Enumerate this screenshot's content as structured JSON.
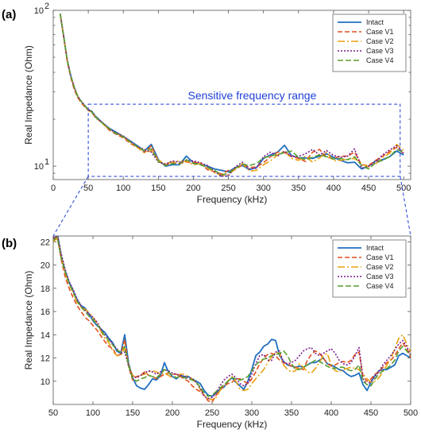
{
  "chart_data": [
    {
      "type": "line",
      "panel_label": "(a)",
      "xlabel": "Frequency (kHz)",
      "ylabel": "Real Impedance (Ohm)",
      "yscale": "log",
      "xlim": [
        0,
        510
      ],
      "ylim": [
        8.2,
        100
      ],
      "x_ticks": [
        "0",
        "50",
        "100",
        "150",
        "200",
        "250",
        "300",
        "350",
        "400",
        "450",
        "500"
      ],
      "y_ticks": [
        "10^2",
        "10^1"
      ],
      "grid": false,
      "legend_position": "top-right",
      "annotation": "Sensitive frequency range",
      "highlight_box_x": [
        50,
        495
      ],
      "highlight_box_y": [
        8.6,
        25
      ],
      "x": [
        10,
        15,
        20,
        25,
        30,
        35,
        40,
        45,
        50,
        55,
        60,
        70,
        80,
        90,
        100,
        110,
        120,
        130,
        140,
        150,
        160,
        170,
        180,
        190,
        200,
        210,
        220,
        230,
        240,
        250,
        260,
        270,
        280,
        290,
        300,
        310,
        320,
        330,
        340,
        350,
        360,
        370,
        380,
        390,
        400,
        410,
        420,
        430,
        440,
        450,
        460,
        470,
        480,
        490,
        500
      ],
      "series": [
        {
          "name": "Intact",
          "color": "#1f6fc0",
          "dash": "",
          "values": [
            95,
            68,
            48,
            38,
            32,
            28,
            26,
            24.5,
            23,
            22.5,
            21,
            19,
            17.5,
            16.5,
            15.5,
            14.5,
            13.5,
            12.5,
            13.8,
            11,
            10,
            10.2,
            10.2,
            11.6,
            10.5,
            10.3,
            10,
            9.6,
            9.4,
            9.2,
            9.8,
            10.1,
            9.5,
            9.8,
            11.2,
            11.8,
            12.3,
            13.6,
            11.7,
            11.3,
            11.3,
            11.2,
            11.6,
            12,
            11.4,
            10.9,
            10.5,
            10.6,
            9.6,
            10,
            10.8,
            11,
            11.5,
            12.5,
            11.8
          ]
        },
        {
          "name": "Case V1",
          "color": "#e0501e",
          "dash": "6,3",
          "values": [
            95,
            67,
            47,
            37,
            31,
            27.5,
            25.5,
            24,
            22.8,
            22.2,
            20.5,
            19,
            17,
            16,
            15.2,
            14,
            13.2,
            12.2,
            13.5,
            10.8,
            10.2,
            10.5,
            10.4,
            10.6,
            10.6,
            10.5,
            9.5,
            9.2,
            8.9,
            9.4,
            9.5,
            10.2,
            9.8,
            9.9,
            10.5,
            11.5,
            12.3,
            12.2,
            11.6,
            11.2,
            10.7,
            12.3,
            12.8,
            11.4,
            11.2,
            11.6,
            11.6,
            12.3,
            10.2,
            10.1,
            10.9,
            11.6,
            12.4,
            13.2,
            12
          ]
        },
        {
          "name": "Case V2",
          "color": "#e8a010",
          "dash": "9,3,2,3",
          "values": [
            95,
            68,
            48,
            38,
            32,
            28,
            26,
            24.3,
            22.9,
            22.1,
            20.8,
            18.8,
            17.2,
            16.2,
            15.5,
            14.2,
            13.2,
            12.2,
            12.6,
            10.9,
            10.4,
            10.6,
            10.8,
            10.7,
            10.2,
            10.4,
            9.8,
            9.1,
            8.7,
            8.8,
            9.6,
            10.4,
            9.3,
            9.4,
            10.2,
            10.8,
            11.8,
            12.5,
            11.2,
            10.9,
            11.6,
            10.6,
            11.3,
            12.3,
            10.8,
            10.9,
            11.1,
            11.2,
            10.4,
            9.9,
            10.3,
            11.4,
            12.1,
            13.8,
            12.6
          ]
        },
        {
          "name": "Case V3",
          "color": "#7a1a8a",
          "dash": "2,2",
          "values": [
            95,
            68,
            48,
            38,
            32,
            28,
            26,
            24.4,
            23.1,
            22.5,
            20.6,
            19.1,
            17.3,
            16.3,
            15.6,
            14.4,
            13.4,
            12.8,
            12.3,
            10.6,
            10.3,
            10.8,
            10.6,
            10.9,
            10.8,
            10.5,
            10.1,
            9.3,
            8.6,
            8.7,
            9.9,
            10.6,
            9.6,
            9.7,
            11.5,
            12.3,
            11.6,
            12.5,
            11.5,
            11.6,
            12,
            12.8,
            11.8,
            12.6,
            11.7,
            11.4,
            11.6,
            12.9,
            9.7,
            10,
            10.6,
            11.8,
            12.7,
            13.5,
            12.1
          ]
        },
        {
          "name": "Case V4",
          "color": "#5a9e30",
          "dash": "7,3",
          "values": [
            95,
            68,
            48,
            38,
            32,
            28,
            26,
            24.4,
            23,
            22.3,
            20.7,
            18.9,
            17.4,
            16.1,
            15.4,
            14.3,
            13.3,
            12.6,
            12.9,
            10.7,
            10.1,
            10.4,
            10.3,
            11,
            10.4,
            10.2,
            9.8,
            9.4,
            8.8,
            9,
            9.7,
            10.3,
            10.1,
            10.4,
            11.3,
            11.6,
            11.9,
            12.2,
            12.5,
            11.4,
            11,
            11.4,
            11.8,
            11.5,
            11.1,
            11.2,
            11,
            11.5,
            10.1,
            9.6,
            10.5,
            10.9,
            11.5,
            12.8,
            12.3
          ]
        }
      ]
    },
    {
      "type": "line",
      "panel_label": "(b)",
      "xlabel": "Frequency (kHz)",
      "ylabel": "Real Impedance (Ohm)",
      "yscale": "linear",
      "xlim": [
        50,
        500
      ],
      "ylim": [
        8,
        22.5
      ],
      "x_ticks": [
        "50",
        "100",
        "150",
        "200",
        "250",
        "300",
        "350",
        "400",
        "450",
        "500"
      ],
      "y_ticks": [
        "10",
        "12",
        "14",
        "16",
        "18",
        "20",
        "22"
      ],
      "grid": false,
      "legend_position": "top-right",
      "x": [
        50,
        55,
        60,
        65,
        70,
        75,
        80,
        85,
        90,
        95,
        100,
        105,
        110,
        115,
        120,
        125,
        130,
        135,
        140,
        145,
        150,
        155,
        160,
        165,
        170,
        175,
        180,
        185,
        190,
        195,
        200,
        205,
        210,
        215,
        220,
        225,
        230,
        235,
        240,
        245,
        250,
        255,
        260,
        265,
        270,
        275,
        280,
        285,
        290,
        295,
        300,
        305,
        310,
        315,
        320,
        325,
        330,
        335,
        340,
        345,
        350,
        355,
        360,
        365,
        370,
        375,
        380,
        385,
        390,
        395,
        400,
        405,
        410,
        415,
        420,
        425,
        430,
        435,
        440,
        445,
        450,
        455,
        460,
        465,
        470,
        475,
        480,
        485,
        490,
        495,
        500
      ],
      "series": [
        {
          "name": "Intact",
          "color": "#1f6fc0",
          "dash": "",
          "values": [
            22,
            22.8,
            20.8,
            19.5,
            18.5,
            17.8,
            17,
            16.5,
            16.3,
            15.8,
            15.2,
            14.8,
            14.5,
            14.2,
            13.7,
            13.3,
            12.6,
            12.4,
            14,
            11.5,
            10.3,
            9.6,
            9.4,
            9.3,
            9.7,
            10.2,
            10.1,
            10.5,
            11.6,
            10.8,
            10.4,
            10.2,
            10.5,
            10.4,
            10.4,
            10.2,
            10,
            9.8,
            9.2,
            8.8,
            8.7,
            9,
            9.3,
            9.5,
            10,
            10.3,
            9.9,
            9.6,
            9.3,
            10,
            11,
            12.2,
            12.5,
            13,
            13.2,
            13.6,
            13.5,
            12.2,
            11.7,
            11.4,
            11.3,
            11.2,
            11.3,
            11.2,
            11.4,
            11.6,
            11.6,
            11.8,
            12,
            11.5,
            11.4,
            11.2,
            11,
            10.9,
            10.6,
            10.4,
            10.5,
            10.7,
            9.7,
            9.2,
            9.9,
            10.5,
            10.9,
            11,
            11,
            11.2,
            11.4,
            12.2,
            12.4,
            12.2,
            12
          ]
        },
        {
          "name": "Case V1",
          "color": "#e0501e",
          "dash": "6,3",
          "values": [
            22.2,
            22.5,
            20.5,
            19,
            18,
            17.2,
            16.5,
            16,
            15.5,
            15.2,
            14.8,
            14.4,
            13.9,
            13.4,
            13,
            12.8,
            12.2,
            12.3,
            13.6,
            11.2,
            10.1,
            10.4,
            10.5,
            10.8,
            10.5,
            10.4,
            10.2,
            10.4,
            10.6,
            10.7,
            10.6,
            10.6,
            10.4,
            10.2,
            10,
            9.6,
            9.3,
            9.1,
            8.8,
            8.3,
            8.2,
            8.8,
            9.2,
            9.6,
            9.8,
            9.9,
            10.2,
            10.2,
            10,
            9.8,
            10.2,
            10.8,
            11.5,
            12,
            12.3,
            12.4,
            12.2,
            11.8,
            11.6,
            11.5,
            11.3,
            11.2,
            11.1,
            11,
            11.8,
            12.3,
            12.6,
            12.4,
            12,
            11.5,
            11.3,
            11.4,
            11.6,
            11.7,
            11.6,
            11.8,
            12.3,
            12.5,
            10.4,
            10,
            10.2,
            10.6,
            10.8,
            11.2,
            11.6,
            11.8,
            12.2,
            12.8,
            13.3,
            12.8,
            12
          ]
        },
        {
          "name": "Case V2",
          "color": "#e8a010",
          "dash": "9,3,2,3",
          "values": [
            22,
            22.3,
            20.8,
            19.3,
            18.4,
            17.6,
            16.8,
            16.4,
            16.2,
            15.9,
            15.5,
            15,
            14.3,
            13.7,
            13.3,
            12.6,
            12.2,
            12.2,
            12.8,
            11.4,
            10.5,
            10.3,
            10.5,
            10.6,
            10.8,
            10.9,
            10.8,
            10.6,
            10.7,
            10.5,
            10.3,
            10.4,
            10.6,
            10.6,
            10.4,
            10.2,
            9.9,
            9.3,
            8.8,
            8.5,
            8.4,
            8.6,
            9.2,
            9.7,
            10,
            10.4,
            10,
            9.3,
            9.2,
            9.3,
            9.8,
            10.2,
            10.6,
            11,
            11.6,
            12.1,
            12.5,
            12.4,
            11.4,
            11,
            10.8,
            10.9,
            11.5,
            11.2,
            10.8,
            10.7,
            11.1,
            11.6,
            12.2,
            12.4,
            11.4,
            10.9,
            10.8,
            11,
            11.1,
            11.2,
            11.1,
            11,
            10.6,
            10.2,
            9.9,
            10,
            10.3,
            10.8,
            11.4,
            11.9,
            12.8,
            13.7,
            14,
            13.2,
            12.5
          ]
        },
        {
          "name": "Case V3",
          "color": "#7a1a8a",
          "dash": "2,2",
          "values": [
            22.3,
            22.6,
            21,
            19.6,
            18.6,
            17.9,
            17.1,
            16.5,
            16.1,
            15.8,
            15.5,
            15.1,
            14.5,
            14,
            13.6,
            13.2,
            12.8,
            12.4,
            12.5,
            11.3,
            10.4,
            10.3,
            10.5,
            10.7,
            10.9,
            10.8,
            10.6,
            10.8,
            11,
            10.9,
            10.7,
            10.6,
            10.5,
            10.4,
            10.3,
            10.2,
            9.9,
            9.4,
            8.7,
            8.5,
            8.6,
            9,
            9.6,
            10.1,
            10.4,
            10.6,
            10.3,
            9.8,
            9.6,
            9.8,
            10.6,
            11.5,
            12.2,
            12.3,
            11.8,
            11.8,
            12.5,
            12.6,
            11.6,
            11.5,
            11.6,
            11.8,
            12.2,
            12.6,
            12.8,
            12.9,
            12.4,
            12.2,
            12.4,
            12.6,
            12.8,
            12.4,
            11.8,
            11.5,
            11.4,
            11.6,
            12.2,
            12.9,
            10.2,
            9.7,
            10,
            10.4,
            10.8,
            11.4,
            11.8,
            12.2,
            12.7,
            13.2,
            13.5,
            13,
            12.2
          ]
        },
        {
          "name": "Case V4",
          "color": "#5a9e30",
          "dash": "7,3",
          "values": [
            22.1,
            22.4,
            20.6,
            19.4,
            18.4,
            17.7,
            16.9,
            16.4,
            16,
            15.6,
            15.3,
            14.9,
            14.4,
            13.9,
            13.5,
            13.1,
            12.7,
            12.5,
            13,
            11.3,
            10.2,
            10,
            10.2,
            10.3,
            10.5,
            10.4,
            10.3,
            10.6,
            11,
            10.8,
            10.5,
            10.3,
            10.4,
            10.3,
            10.2,
            10.1,
            9.9,
            9.5,
            9,
            8.7,
            8.8,
            9.1,
            9.4,
            9.7,
            10,
            10.3,
            10.2,
            10.1,
            10.2,
            10.4,
            10.9,
            11.4,
            11.7,
            11.9,
            12,
            12.2,
            12.3,
            12.4,
            12.6,
            12.2,
            11.5,
            11,
            11,
            11.2,
            11.4,
            11.6,
            11.8,
            11.7,
            11.5,
            11.3,
            11.1,
            11.1,
            11.2,
            11.2,
            11,
            10.9,
            11,
            11.4,
            10,
            9.7,
            9.6,
            10.2,
            10.6,
            10.9,
            11.1,
            11.4,
            11.8,
            12.6,
            13,
            12.6,
            12.2
          ]
        }
      ]
    }
  ]
}
